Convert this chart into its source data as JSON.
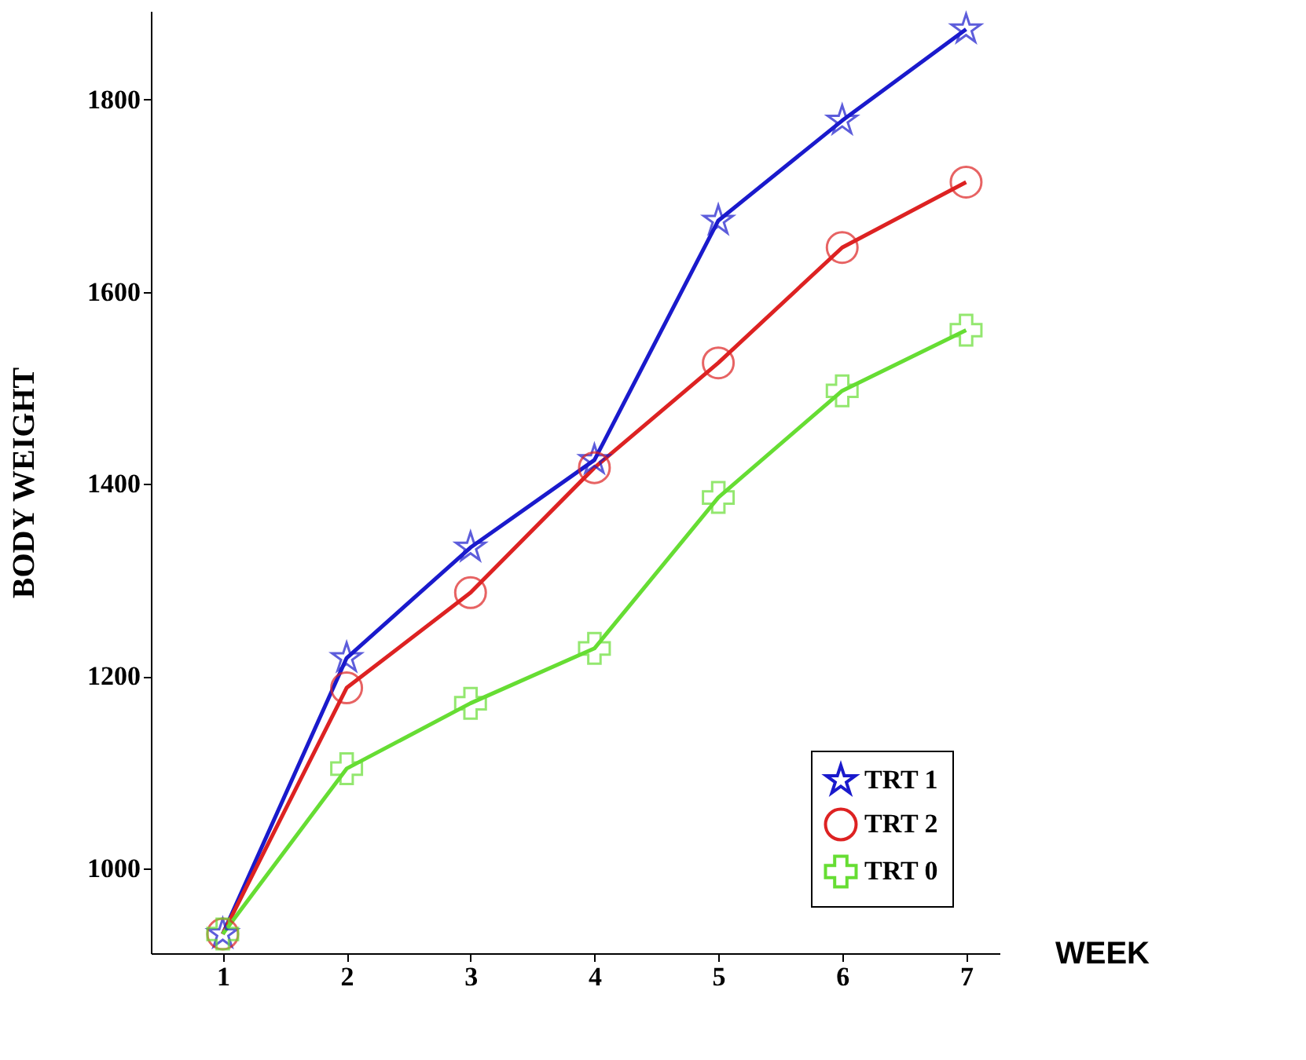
{
  "chart_data": {
    "type": "line",
    "xlabel": "WEEK",
    "ylabel": "BODY WEIGHT",
    "x": [
      1,
      2,
      3,
      4,
      5,
      6,
      7
    ],
    "series": [
      {
        "name": "TRT 1",
        "color": "#1a1acc",
        "marker": "star",
        "values": [
          932,
          1219,
          1334,
          1425,
          1674,
          1778,
          1873
        ]
      },
      {
        "name": "TRT 2",
        "color": "#dd2222",
        "marker": "circle",
        "values": [
          932,
          1188,
          1287,
          1417,
          1526,
          1646,
          1714
        ]
      },
      {
        "name": "TRT 0",
        "color": "#66dd33",
        "marker": "cross",
        "values": [
          932,
          1104,
          1172,
          1229,
          1386,
          1497,
          1560
        ]
      }
    ],
    "xlim": [
      0.42,
      7.27
    ],
    "xticks": [
      1,
      2,
      3,
      4,
      5,
      6,
      7
    ],
    "ylim": [
      912,
      1892
    ],
    "yticks": [
      1000,
      1200,
      1400,
      1600,
      1800
    ],
    "grid": false,
    "legend": "bottom right",
    "line_style": "solid"
  }
}
